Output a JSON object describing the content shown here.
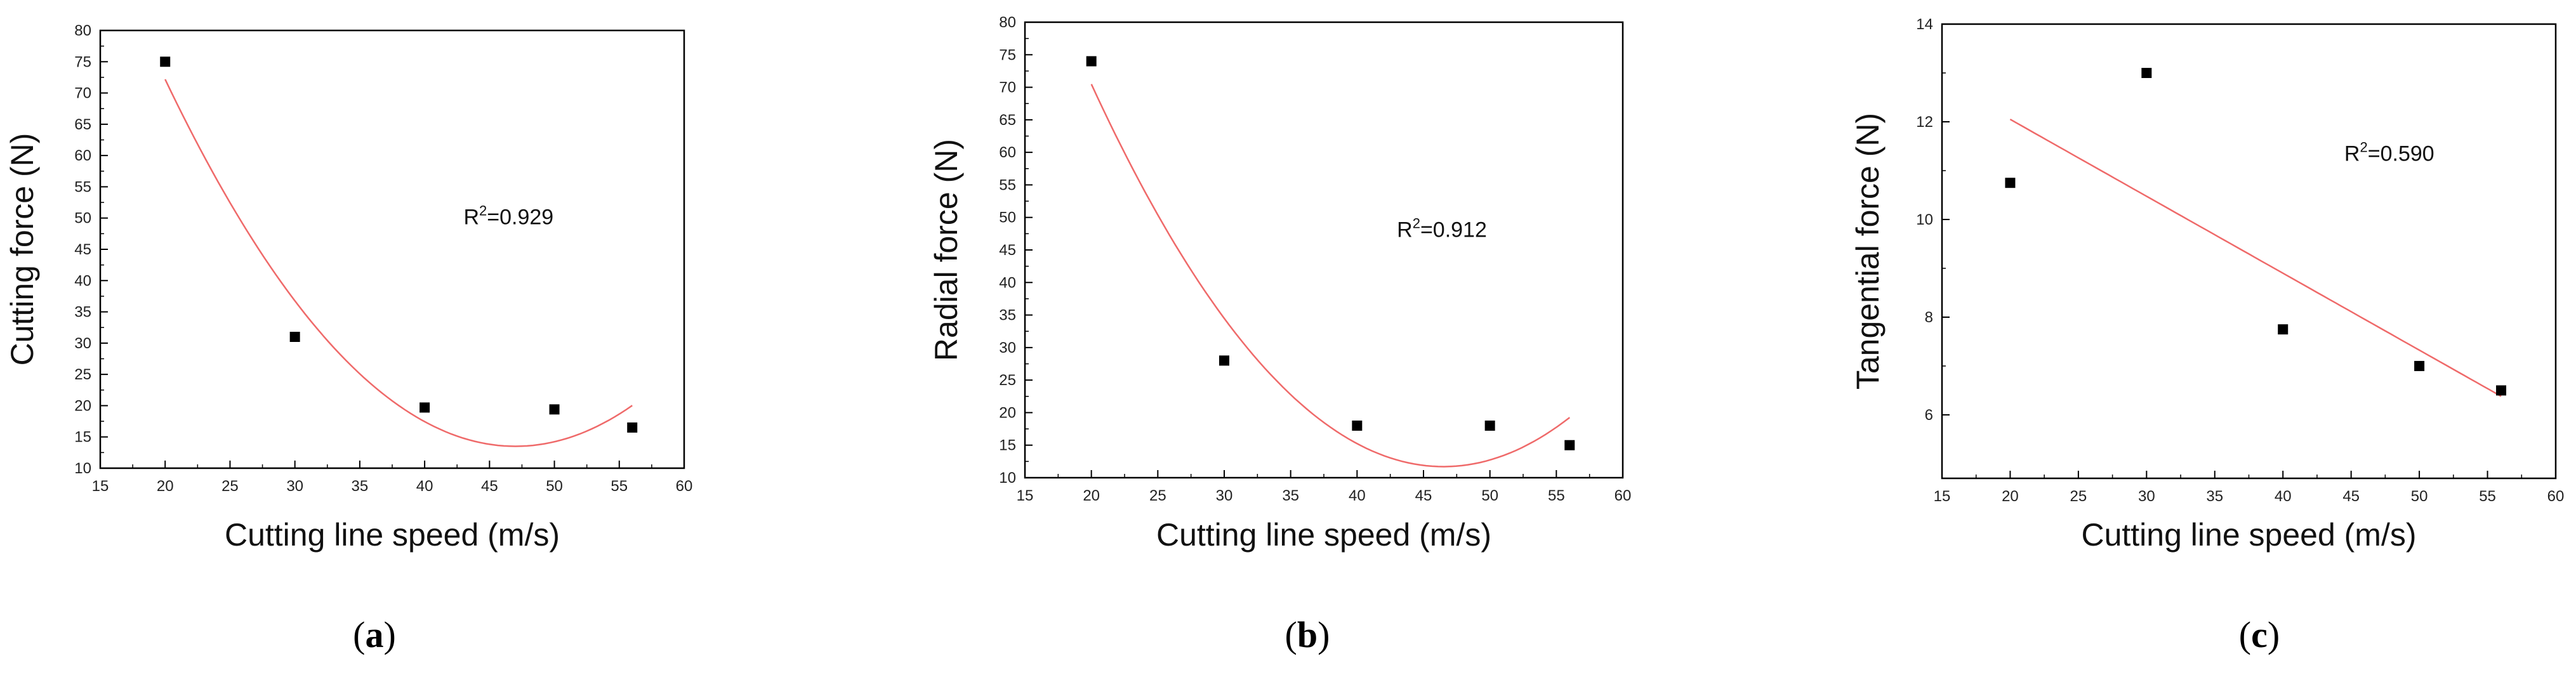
{
  "chart_data": [
    {
      "type": "scatter",
      "panel": "a",
      "caption_letter": "a",
      "xlabel": "Cutting line speed (m/s)",
      "ylabel": "Cutting force (N)",
      "xlim": [
        15,
        60
      ],
      "ylim": [
        10,
        80
      ],
      "xticks": [
        15,
        20,
        25,
        30,
        35,
        40,
        45,
        50,
        55,
        60
      ],
      "yticks": [
        10,
        15,
        20,
        25,
        30,
        35,
        40,
        45,
        50,
        55,
        60,
        65,
        70,
        75,
        80
      ],
      "points": [
        {
          "x": 20,
          "y": 75
        },
        {
          "x": 30,
          "y": 31
        },
        {
          "x": 40,
          "y": 19.7
        },
        {
          "x": 50,
          "y": 19.4
        },
        {
          "x": 56,
          "y": 16.5
        }
      ],
      "fit": {
        "kind": "quadratic",
        "vertex_x": 47,
        "vertex_y": 13.5,
        "a": 0.0805,
        "x_range": [
          20,
          56
        ]
      },
      "annotation": {
        "prefix": "R",
        "sup": "2",
        "text": "=0.929",
        "x": 43,
        "y": 49
      },
      "fit_color": "#ef6a6a",
      "point_color": "#000000"
    },
    {
      "type": "scatter",
      "panel": "b",
      "caption_letter": "b",
      "xlabel": "Cutting line speed (m/s)",
      "ylabel": "Radial force (N)",
      "xlim": [
        15,
        60
      ],
      "ylim": [
        10,
        80
      ],
      "xticks": [
        15,
        20,
        25,
        30,
        35,
        40,
        45,
        50,
        55,
        60
      ],
      "yticks": [
        10,
        15,
        20,
        25,
        30,
        35,
        40,
        45,
        50,
        55,
        60,
        65,
        70,
        75,
        80
      ],
      "points": [
        {
          "x": 20,
          "y": 74
        },
        {
          "x": 30,
          "y": 28
        },
        {
          "x": 40,
          "y": 18
        },
        {
          "x": 50,
          "y": 18
        },
        {
          "x": 56,
          "y": 15
        }
      ],
      "fit": {
        "kind": "quadratic",
        "vertex_x": 46.5,
        "vertex_y": 11.7,
        "a": 0.0837,
        "x_range": [
          20,
          56
        ]
      },
      "annotation": {
        "prefix": "R",
        "sup": "2",
        "text": "=0.912",
        "x": 43,
        "y": 47
      },
      "fit_color": "#ef6a6a",
      "point_color": "#000000"
    },
    {
      "type": "scatter",
      "panel": "c",
      "caption_letter": "c",
      "xlabel": "Cutting line speed (m/s)",
      "ylabel": "Tangential force (N)",
      "xlim": [
        15,
        60
      ],
      "ylim": [
        4.7,
        14
      ],
      "xticks": [
        15,
        20,
        25,
        30,
        35,
        40,
        45,
        50,
        55,
        60
      ],
      "yticks": [
        6,
        8,
        10,
        12,
        14
      ],
      "points": [
        {
          "x": 20,
          "y": 10.75
        },
        {
          "x": 30,
          "y": 13
        },
        {
          "x": 40,
          "y": 7.75
        },
        {
          "x": 50,
          "y": 7
        },
        {
          "x": 56,
          "y": 6.5
        }
      ],
      "fit": {
        "kind": "linear",
        "slope": -0.1575,
        "intercept": 15.2,
        "x_range": [
          20,
          56
        ]
      },
      "annotation": {
        "prefix": "R",
        "sup": "2",
        "text": "=0.590",
        "x": 44.5,
        "y": 11.2
      },
      "fit_color": "#ef6a6a",
      "point_color": "#000000"
    }
  ]
}
